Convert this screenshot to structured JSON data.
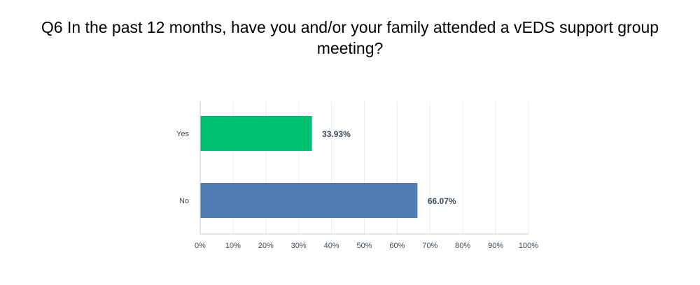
{
  "chart_data": {
    "type": "bar",
    "orientation": "horizontal",
    "title": "Q6 In the past 12 months, have you and/or your family attended a vEDS support group meeting?",
    "categories": [
      "Yes",
      "No"
    ],
    "values": [
      33.93,
      66.07
    ],
    "data_labels": [
      "33.93%",
      "66.07%"
    ],
    "colors": [
      "#00bf6f",
      "#507cb6"
    ],
    "xlim": [
      0,
      100
    ],
    "x_ticks": [
      "0%",
      "10%",
      "20%",
      "30%",
      "40%",
      "50%",
      "60%",
      "70%",
      "80%",
      "90%",
      "100%"
    ],
    "grid": true,
    "legend": "none"
  }
}
